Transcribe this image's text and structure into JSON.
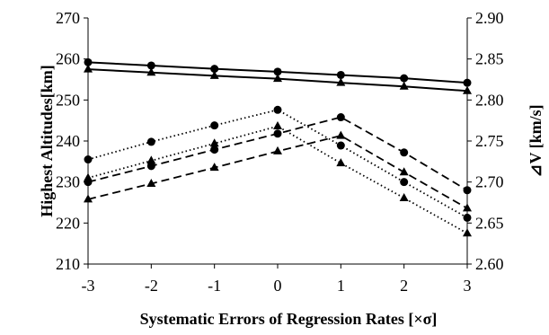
{
  "chart_data": {
    "type": "line",
    "title": "",
    "xlabel": "Systematic Errors of Regression Rates [×σ]",
    "ylabel_left": "Highest Altitudes[km]",
    "ylabel_right": "⊿V [km/s]",
    "x": [
      -3,
      -2,
      -1,
      0,
      1,
      2,
      3
    ],
    "x_tick_labels": [
      "-3",
      "-2",
      "-1",
      "0",
      "1",
      "2",
      "3"
    ],
    "ylim_left": [
      210,
      270
    ],
    "ylim_right": [
      2.6,
      2.9
    ],
    "y_left_ticks": [
      "210",
      "220",
      "230",
      "240",
      "250",
      "260",
      "270"
    ],
    "y_right_ticks": [
      "2.60",
      "2.65",
      "2.70",
      "2.75",
      "2.80",
      "2.85",
      "2.90"
    ],
    "grid": false,
    "legend": "none",
    "series": [
      {
        "axis": "left",
        "line_style": "solid",
        "marker": "circle",
        "values": [
          259.2,
          258.4,
          257.6,
          256.9,
          256.1,
          255.3,
          254.2
        ]
      },
      {
        "axis": "left",
        "line_style": "solid",
        "marker": "triangle",
        "values": [
          257.5,
          256.7,
          255.9,
          255.2,
          254.2,
          253.3,
          252.2
        ]
      },
      {
        "axis": "left",
        "line_style": "dotted",
        "marker": "circle",
        "values": [
          235.5,
          239.8,
          243.8,
          247.6,
          238.9,
          230.0,
          221.3
        ]
      },
      {
        "axis": "left",
        "line_style": "dotted",
        "marker": "triangle",
        "values": [
          231.0,
          235.2,
          239.4,
          243.6,
          234.6,
          226.1,
          217.5
        ]
      },
      {
        "axis": "left",
        "line_style": "dashed",
        "marker": "circle",
        "values": [
          230.0,
          233.9,
          237.9,
          241.8,
          245.8,
          237.2,
          228.0
        ]
      },
      {
        "axis": "left",
        "line_style": "dashed",
        "marker": "triangle",
        "values": [
          225.8,
          229.6,
          233.5,
          237.5,
          241.3,
          232.4,
          223.6
        ]
      }
    ]
  }
}
